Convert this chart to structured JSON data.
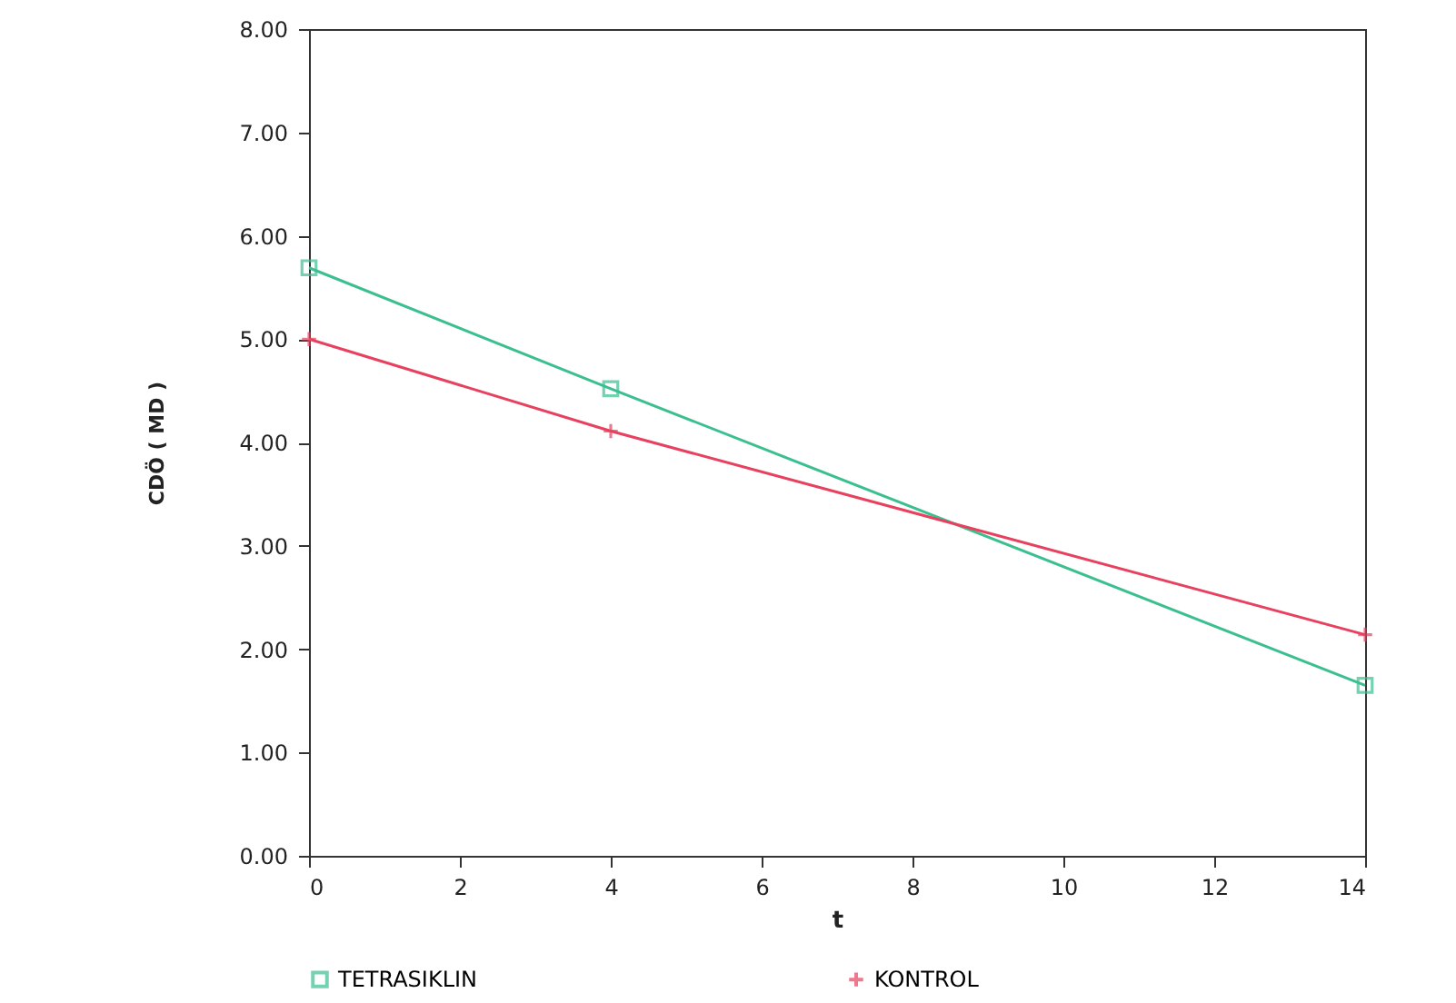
{
  "chart_data": {
    "type": "line",
    "xlabel": "t",
    "ylabel": "CDÖ  ( MD )",
    "x": [
      0,
      4,
      14
    ],
    "series": [
      {
        "name": "TETRASIKLIN",
        "color": "#3cbf8f",
        "marker": "square",
        "values": [
          5.69,
          4.52,
          1.65
        ]
      },
      {
        "name": "KONTROL",
        "color": "#e8415f",
        "marker": "cross",
        "values": [
          5.0,
          4.11,
          2.14
        ]
      }
    ],
    "xlim": [
      0,
      14
    ],
    "xticks": [
      0,
      2,
      4,
      6,
      8,
      10,
      12,
      14
    ],
    "ylim": [
      0,
      8
    ],
    "yticks": [
      {
        "value": 0,
        "label": "0.00"
      },
      {
        "value": 1,
        "label": "1.00"
      },
      {
        "value": 2,
        "label": "2.00"
      },
      {
        "value": 3,
        "label": "3.00"
      },
      {
        "value": 4,
        "label": "4.00"
      },
      {
        "value": 5,
        "label": "5.00"
      },
      {
        "value": 6,
        "label": "6.00"
      },
      {
        "value": 7,
        "label": "7.00"
      },
      {
        "value": 8,
        "label": "8.00"
      }
    ],
    "grid": false,
    "legend": "bottom",
    "line_style": "solid"
  }
}
